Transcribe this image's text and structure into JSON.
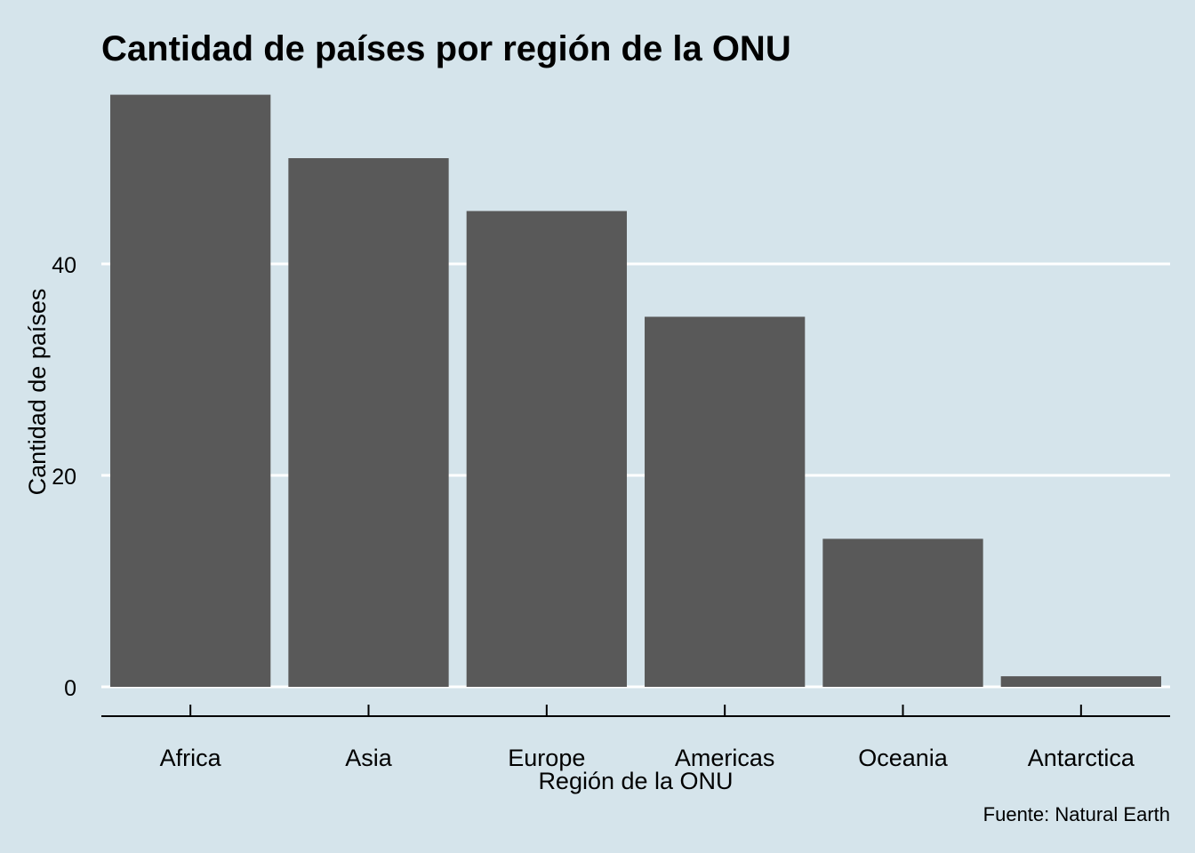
{
  "chart_data": {
    "type": "bar",
    "title": "Cantidad de países por región de la ONU",
    "xlabel": "Región de la ONU",
    "ylabel": "Cantidad de países",
    "caption": "Fuente: Natural Earth",
    "categories": [
      "Africa",
      "Asia",
      "Europe",
      "Americas",
      "Oceania",
      "Antarctica"
    ],
    "values": [
      56,
      50,
      45,
      35,
      14,
      1
    ],
    "yticks": [
      0,
      20,
      40
    ],
    "ylim": [
      0,
      56
    ],
    "grid": "horizontal",
    "legend": "none",
    "colors": {
      "background": "#d5e4eb",
      "bar": "#595959",
      "grid": "#ffffff",
      "text": "#000000"
    }
  }
}
